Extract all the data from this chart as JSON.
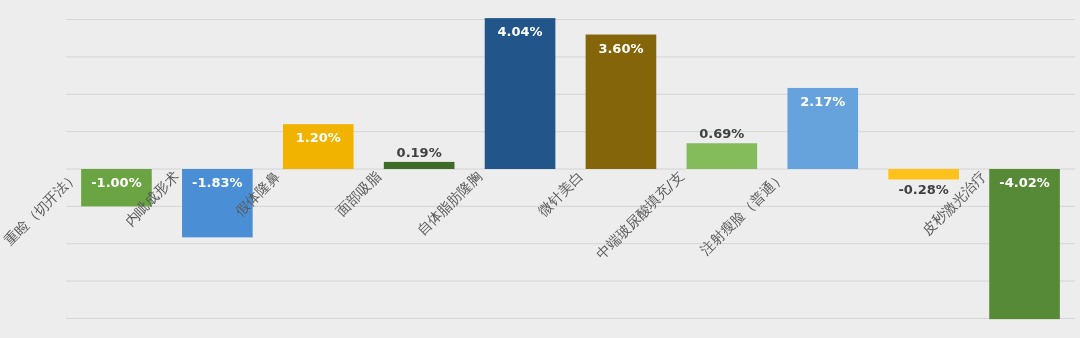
{
  "chart_data": {
    "type": "bar",
    "categories": [
      "重睑（切开法）",
      "内眦成形术",
      "假体隆鼻",
      "面部吸脂",
      "自体脂肪隆胸",
      "微针美白",
      "中端玻尿酸填充/支",
      "注射瘦脸（普通）",
      null,
      "皮秒激光治疗"
    ],
    "values": [
      -1.0,
      -1.83,
      1.2,
      0.19,
      4.04,
      3.6,
      0.69,
      2.17,
      -0.28,
      -4.02
    ],
    "value_labels": [
      "-1.00%",
      "-1.83%",
      "1.20%",
      "0.19%",
      "4.04%",
      "3.60%",
      "0.69%",
      "2.17%",
      "-0.28%",
      "-4.02%"
    ],
    "colors": [
      "#6aa443",
      "#4a8fd6",
      "#f2b200",
      "#3e6b27",
      "#22558a",
      "#85650a",
      "#84bc5c",
      "#66a3dc",
      "#ffc21a",
      "#578a37"
    ],
    "yticks": [
      {
        "value": -4,
        "label": null
      },
      {
        "value": -3,
        "label": null
      },
      {
        "value": -2,
        "label": null
      },
      {
        "value": -1,
        "label": null
      },
      {
        "value": 0,
        "label": null
      },
      {
        "value": 1,
        "label": null
      },
      {
        "value": 2,
        "label": null
      },
      {
        "value": 3,
        "label": null
      },
      {
        "value": 4,
        "label": null
      }
    ],
    "grid": "y"
  }
}
